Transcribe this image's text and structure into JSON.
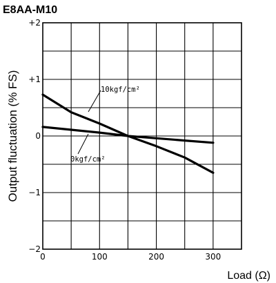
{
  "chart_data": {
    "type": "line",
    "title": "E8AA-M10",
    "xlabel": "Load (Ω)",
    "ylabel": "Output fluctuation (% FS)",
    "xlim": [
      0,
      350
    ],
    "ylim": [
      -2,
      2
    ],
    "x_ticks": [
      "0",
      "100",
      "200",
      "300"
    ],
    "y_ticks": [
      "+2",
      "+1",
      "0",
      "−1",
      "−2"
    ],
    "grid": true,
    "series": [
      {
        "name": "10kgf/cm²",
        "x": [
          0,
          50,
          100,
          150,
          200,
          250,
          300
        ],
        "y": [
          0.73,
          0.42,
          0.22,
          0.0,
          -0.18,
          -0.38,
          -0.65
        ],
        "color": "#000000"
      },
      {
        "name": "0kgf/cm²",
        "x": [
          0,
          50,
          100,
          150,
          200,
          250,
          300
        ],
        "y": [
          0.16,
          0.11,
          0.06,
          0.0,
          -0.04,
          -0.08,
          -0.12
        ],
        "color": "#000000"
      }
    ],
    "annotations": [
      "10kgf/cm²",
      "0kgf/cm²"
    ]
  }
}
